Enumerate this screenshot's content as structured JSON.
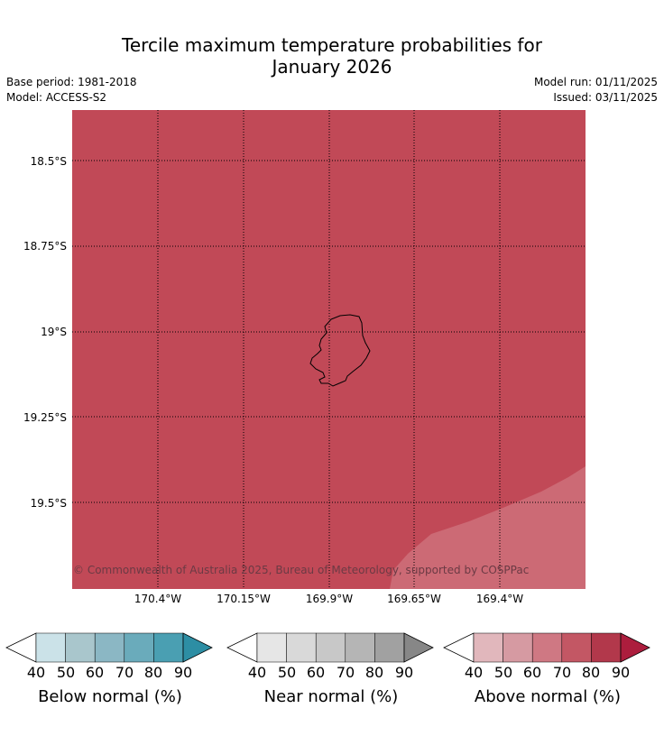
{
  "title_line1": "Tercile maximum temperature probabilities for",
  "title_line2": "January 2026",
  "meta_left": {
    "base_period": "Base period: 1981-2018",
    "model": "Model: ACCESS-S2"
  },
  "meta_right": {
    "model_run": "Model run: 01/11/2025",
    "issued": "Issued: 03/11/2025"
  },
  "map": {
    "lat_labels": [
      "18.5°S",
      "18.75°S",
      "19°S",
      "19.25°S",
      "19.5°S"
    ],
    "lon_labels": [
      "170.4°W",
      "170.15°W",
      "169.9°W",
      "169.65°W",
      "169.4°W"
    ],
    "fill_colors": {
      "above_70_80": "#c14957",
      "above_60_70": "#cc6a75"
    },
    "copyright": "© Commonwealth of Australia 2025, Bureau of Meteorology, supported by COSPPac"
  },
  "legends": [
    {
      "title": "Below normal (%)",
      "ticks": [
        "40",
        "50",
        "60",
        "70",
        "80",
        "90"
      ],
      "colors": [
        "#cbe2e8",
        "#a9c6cc",
        "#8bb7c4",
        "#6aabbb",
        "#4a9fb2",
        "#2d8ea4"
      ]
    },
    {
      "title": "Near normal (%)",
      "ticks": [
        "40",
        "50",
        "60",
        "70",
        "80",
        "90"
      ],
      "colors": [
        "#e6e6e6",
        "#d9d9d9",
        "#c8c8c8",
        "#b5b5b5",
        "#a1a1a1",
        "#878787"
      ]
    },
    {
      "title": "Above normal (%)",
      "ticks": [
        "40",
        "50",
        "60",
        "70",
        "80",
        "90"
      ],
      "colors": [
        "#e1b7bc",
        "#d69aa2",
        "#cf7883",
        "#c35764",
        "#b2384b",
        "#ac1d3d"
      ]
    }
  ]
}
